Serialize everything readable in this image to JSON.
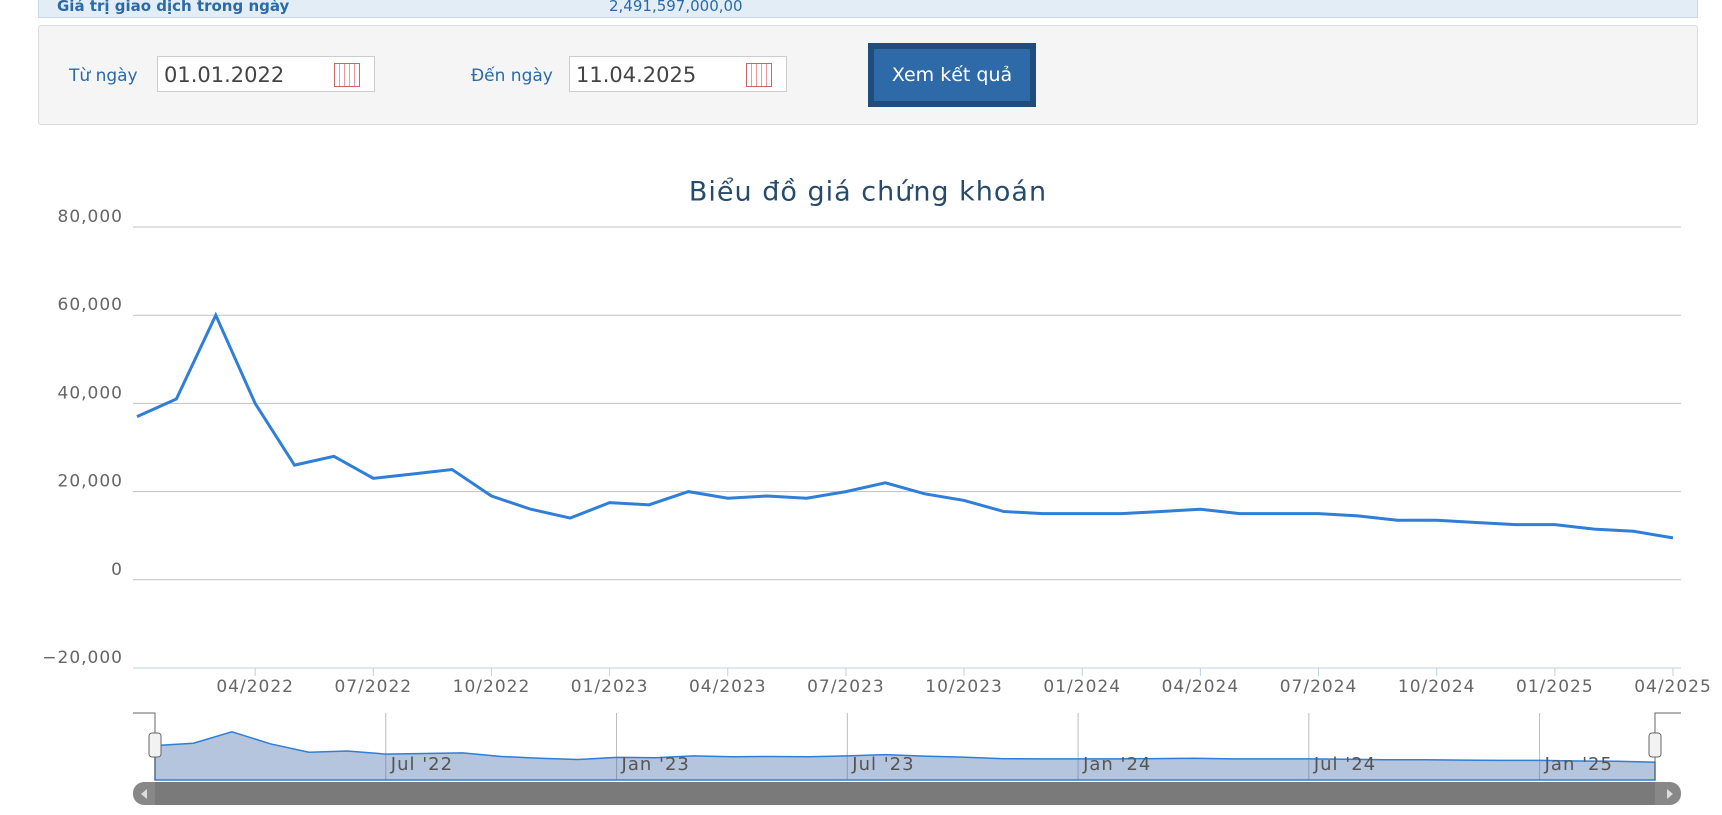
{
  "info_row": {
    "label": "Giá trị giao dịch trong ngày",
    "value": "2,491,597,000,00"
  },
  "form": {
    "from_label": "Từ ngày",
    "from_value": "01.01.2022",
    "to_label": "Đến ngày",
    "to_value": "11.04.2025",
    "button": "Xem kết quả"
  },
  "chart_data": {
    "type": "line",
    "title": "Biểu đồ giá chứng khoán",
    "categories": [
      null,
      null,
      null,
      "04/2022",
      null,
      null,
      "07/2022",
      null,
      null,
      "10/2022",
      null,
      null,
      "01/2023",
      null,
      null,
      "04/2023",
      null,
      null,
      "07/2023",
      null,
      null,
      "10/2023",
      null,
      null,
      "01/2024",
      null,
      null,
      "04/2024",
      null,
      null,
      "07/2024",
      null,
      null,
      "10/2024",
      null,
      null,
      "01/2025",
      null,
      null,
      "04/2025"
    ],
    "series": [
      {
        "color": "#2f7ed8",
        "values": [
          37000,
          41000,
          60000,
          40000,
          26000,
          28000,
          23000,
          24000,
          25000,
          19000,
          16000,
          14000,
          17500,
          17000,
          20000,
          18500,
          19000,
          18500,
          20000,
          22000,
          19500,
          18000,
          15500,
          15000,
          15000,
          15000,
          15500,
          16000,
          15000,
          15000,
          15000,
          14500,
          13500,
          13500,
          13000,
          12500,
          12500,
          11500,
          11000,
          9500
        ]
      }
    ],
    "ylim": [
      -20000,
      80000
    ],
    "yticks": [
      {
        "value": -20000,
        "label": "−20,000"
      },
      0,
      {
        "value": 20000,
        "label": "20,000"
      },
      {
        "value": 40000,
        "label": "40,000"
      },
      {
        "value": 60000,
        "label": "60,000"
      },
      {
        "value": 80000,
        "label": "80,000"
      }
    ],
    "grid": true,
    "navigator_labels": [
      "Jul '22",
      "Jan '23",
      "Jul '23",
      "Jan '24",
      "Jul '24",
      "Jan '25"
    ]
  }
}
